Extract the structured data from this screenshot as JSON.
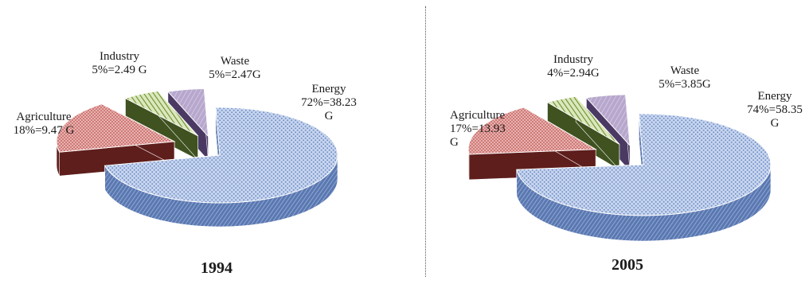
{
  "chart_data": [
    {
      "type": "pie",
      "title": "1994",
      "categories": [
        "Energy",
        "Agriculture",
        "Industry",
        "Waste"
      ],
      "values": [
        72,
        18,
        5,
        5
      ],
      "labels": [
        {
          "name": "Energy",
          "line1": "72%=38.23",
          "line2": "G"
        },
        {
          "name": "Agriculture",
          "line1": "18%=9.47 G",
          "line2": ""
        },
        {
          "name": "Industry",
          "line1": "5%=2.49 G",
          "line2": ""
        },
        {
          "name": "Waste",
          "line1": "5%=2.47G",
          "line2": ""
        }
      ],
      "colors": [
        "#8ea9d9",
        "#c0504d",
        "#9bbb59",
        "#8064a2"
      ],
      "style": "3d-exploded-pie"
    },
    {
      "type": "pie",
      "title": "2005",
      "categories": [
        "Energy",
        "Agriculture",
        "Industry",
        "Waste"
      ],
      "values": [
        74,
        17,
        4,
        5
      ],
      "labels": [
        {
          "name": "Energy",
          "line1": "74%=58.35",
          "line2": "G"
        },
        {
          "name": "Agriculture",
          "line1": "17%=13.93",
          "line2": "G"
        },
        {
          "name": "Industry",
          "line1": "4%=2.94G",
          "line2": ""
        },
        {
          "name": "Waste",
          "line1": "5%=3.85G",
          "line2": ""
        }
      ],
      "colors": [
        "#8ea9d9",
        "#c0504d",
        "#9bbb59",
        "#8064a2"
      ],
      "style": "3d-exploded-pie"
    }
  ]
}
